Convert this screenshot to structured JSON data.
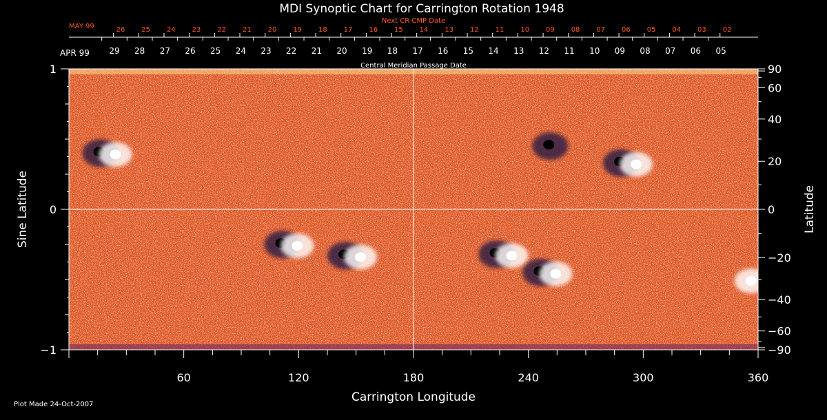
{
  "chart_data": {
    "type": "heatmap",
    "title": "MDI Synoptic Chart for Carrington Rotation 1948",
    "xlabel": "Carrington Longitude",
    "ylabel_left": "Sine Latitude",
    "ylabel_right": "Latitude",
    "xlim": [
      0,
      360
    ],
    "ylim": [
      -1,
      1
    ],
    "x_ticks": [
      "60",
      "120",
      "180",
      "240",
      "300",
      "360"
    ],
    "left_ticks": [
      "1",
      "0",
      "−1"
    ],
    "right_ticks": [
      "90",
      "60",
      "40",
      "20",
      "0",
      "−20",
      "−40",
      "−60",
      "−90"
    ],
    "top_axis_label": "Central Meridian Passage Date",
    "top_month": "APR 99",
    "top_dates": [
      "29",
      "28",
      "27",
      "26",
      "25",
      "24",
      "23",
      "22",
      "21",
      "20",
      "19",
      "18",
      "17",
      "16",
      "15",
      "14",
      "13",
      "12",
      "11",
      "10",
      "09",
      "08",
      "07",
      "06",
      "05"
    ],
    "next_axis_label": "Next CR CMP Date",
    "next_month": "MAY 99",
    "next_dates": [
      "26",
      "25",
      "24",
      "23",
      "22",
      "21",
      "20",
      "19",
      "18",
      "17",
      "16",
      "15",
      "14",
      "13",
      "12",
      "11",
      "10",
      "09",
      "08",
      "07",
      "06",
      "05",
      "04",
      "03",
      "02"
    ],
    "footnote": "Plot Made 24-Oct-2007",
    "colors": {
      "background_field": "#e5551a",
      "positive_polarity": "#ffffff",
      "negative_polarity": "#1a1445",
      "next_cr_text": "#ff5a2a"
    },
    "active_regions": [
      {
        "lon": 20,
        "sinlat": 0.4,
        "polarity": "bipolar"
      },
      {
        "lon": 115,
        "sinlat": -0.25,
        "polarity": "bipolar"
      },
      {
        "lon": 148,
        "sinlat": -0.33,
        "polarity": "bipolar"
      },
      {
        "lon": 255,
        "sinlat": 0.45,
        "polarity": "negative"
      },
      {
        "lon": 292,
        "sinlat": 0.33,
        "polarity": "bipolar"
      },
      {
        "lon": 227,
        "sinlat": -0.32,
        "polarity": "bipolar"
      },
      {
        "lon": 250,
        "sinlat": -0.45,
        "polarity": "bipolar"
      },
      {
        "lon": 352,
        "sinlat": -0.5,
        "polarity": "positive"
      }
    ]
  }
}
